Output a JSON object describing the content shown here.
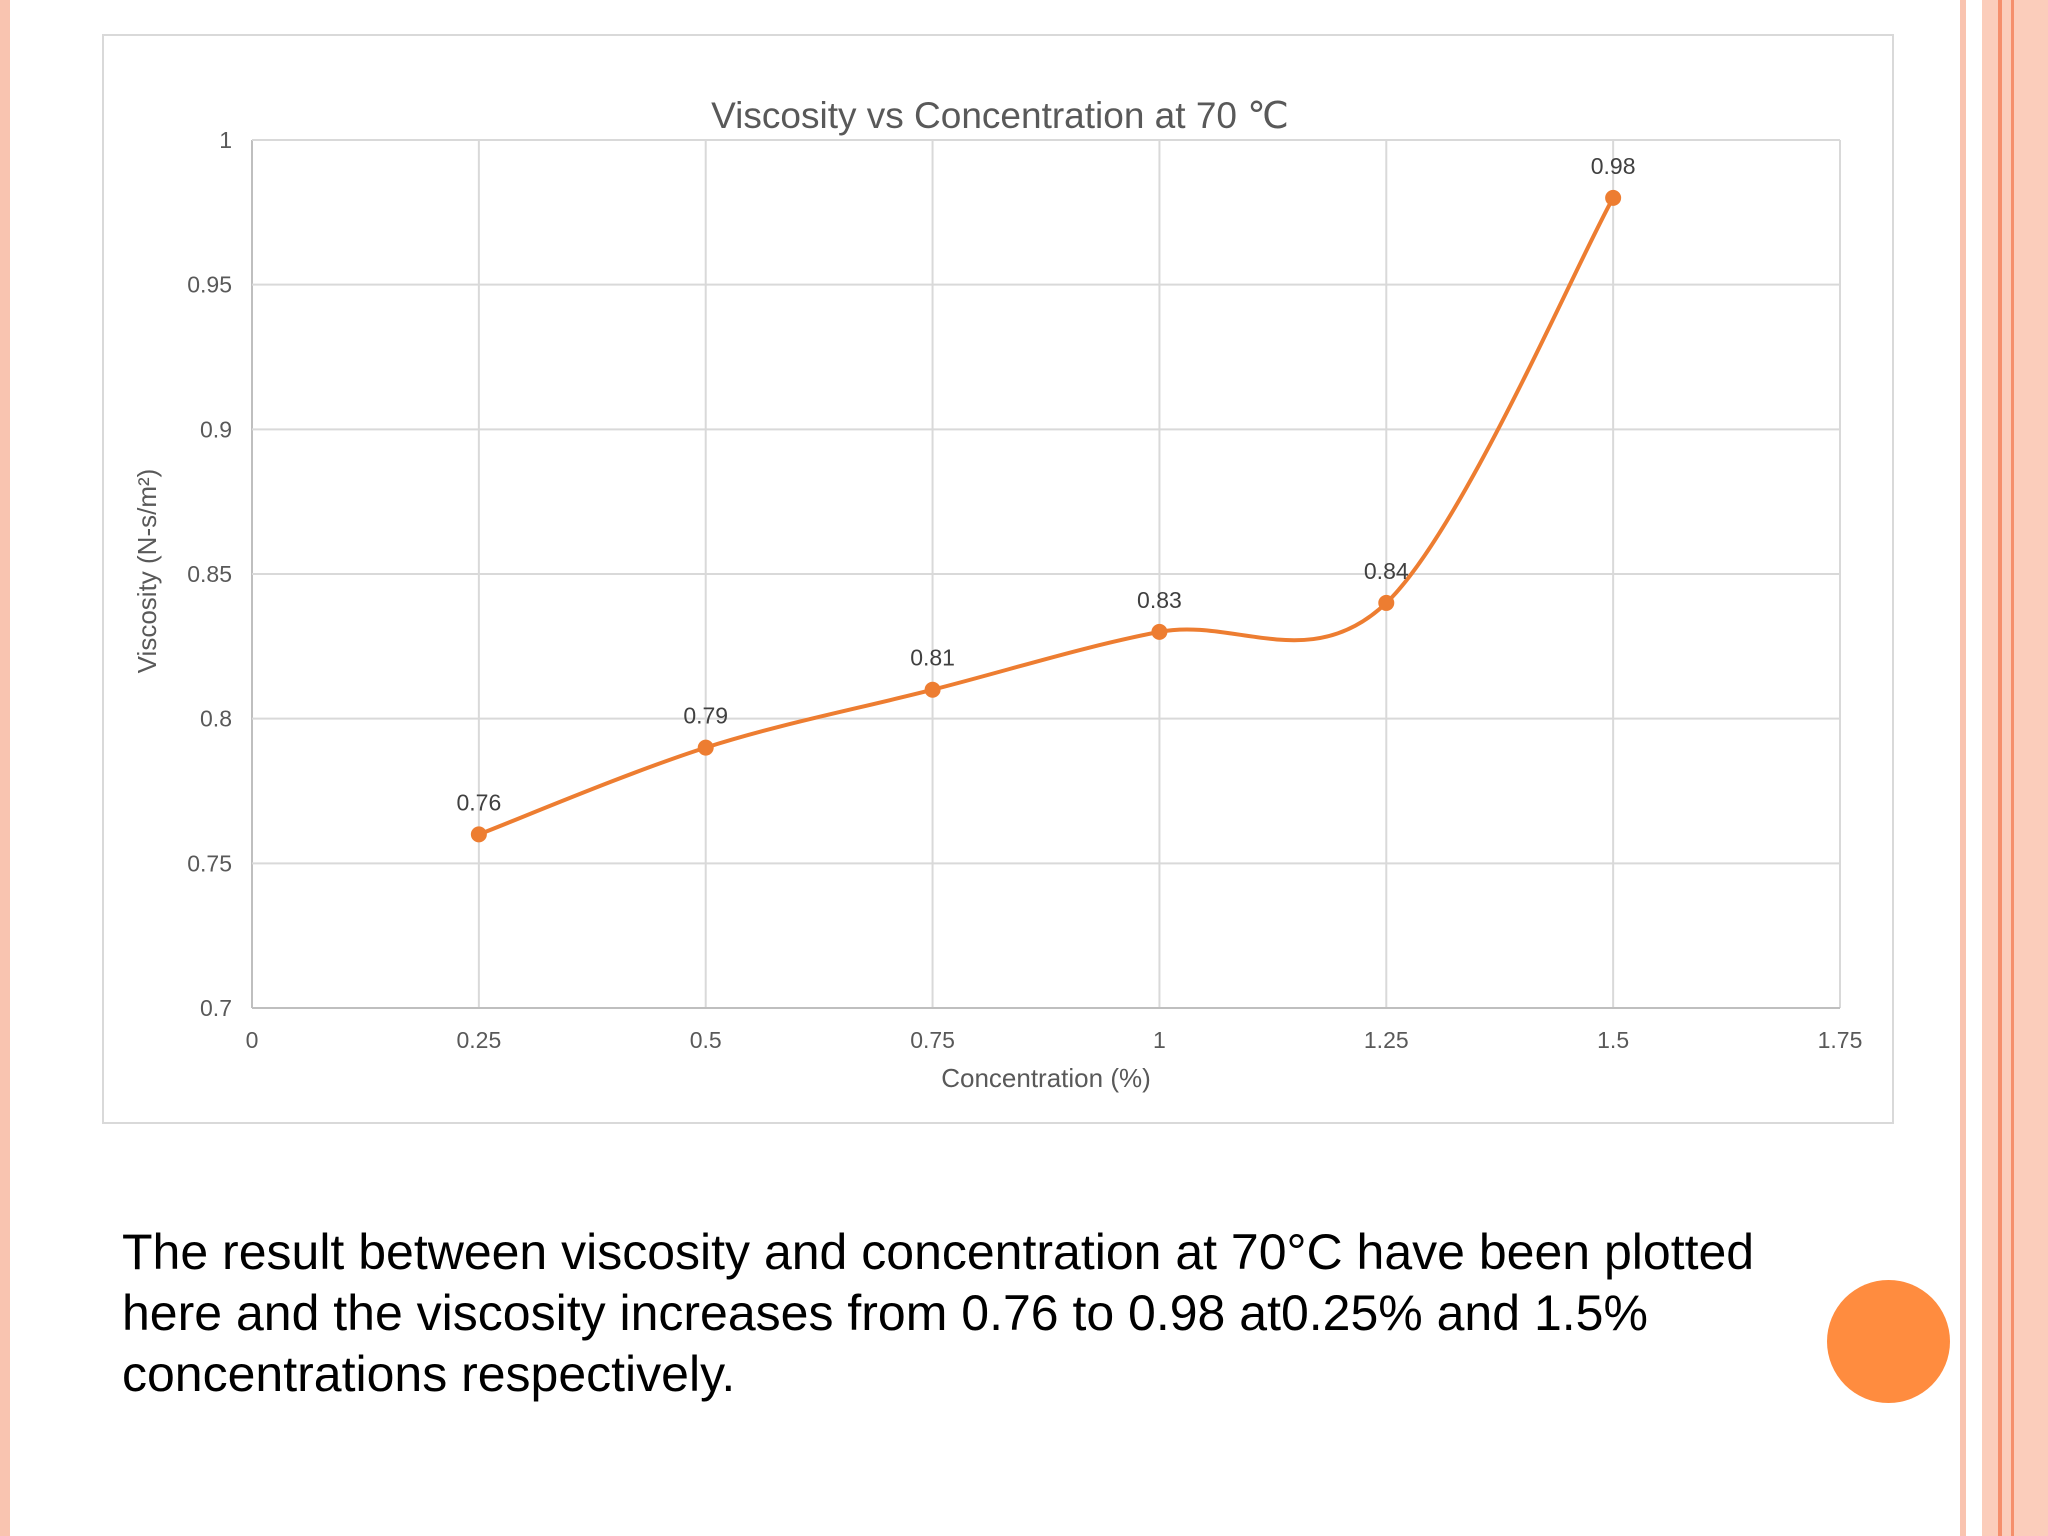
{
  "slide": {
    "caption": "The result between viscosity and concentration at 70°C have been plotted here and the viscosity increases from 0.76 to 0.98 at0.25% and 1.5% concentrations respectively.",
    "colors": {
      "accent": "#FF8C3F",
      "border_light": "#FAD0C0",
      "border_mid": "#F7B09A",
      "border_line": "#F58F6C"
    },
    "decorations": [
      "left-border-stripe",
      "right-border-stripes",
      "orange-circle"
    ]
  },
  "chart_data": {
    "type": "line",
    "title": "Viscosity vs Concentration at 70 ℃",
    "xlabel": "Concentration (%)",
    "ylabel": "Viscosity (N-s/m²)",
    "xlim": [
      0,
      1.75
    ],
    "ylim": [
      0.7,
      1
    ],
    "xticks": [
      "0",
      "0.25",
      "0.5",
      "0.75",
      "1",
      "1.25",
      "1.5",
      "1.75"
    ],
    "yticks": [
      "0.7",
      "0.75",
      "0.8",
      "0.85",
      "0.9",
      "0.95",
      "1"
    ],
    "grid": true,
    "smooth": true,
    "series_color": "#ED7D31",
    "x": [
      0.25,
      0.5,
      0.75,
      1,
      1.25,
      1.5
    ],
    "y": [
      0.76,
      0.79,
      0.81,
      0.83,
      0.84,
      0.98
    ],
    "data_labels": [
      "0.76",
      "0.79",
      "0.81",
      "0.83",
      "0.84",
      "0.98"
    ]
  }
}
